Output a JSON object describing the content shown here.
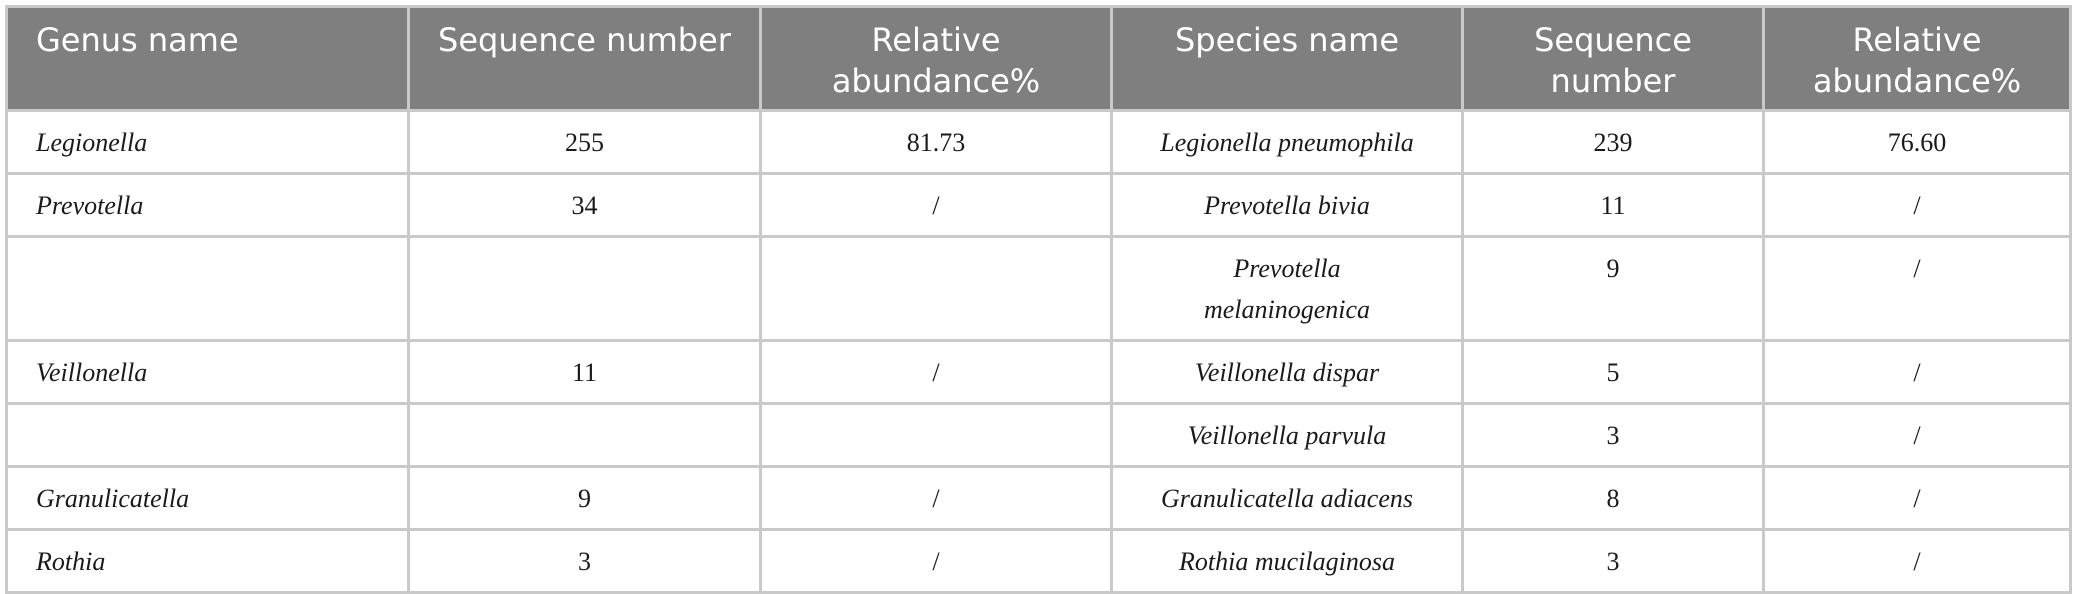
{
  "table": {
    "headers": [
      "Genus name",
      "Sequence number",
      "Relative abundance%",
      "Species name",
      "Sequence number",
      "Relative abundance%"
    ],
    "rows": [
      [
        "Legionella",
        "255",
        "81.73",
        "Legionella pneumophila",
        "239",
        "76.60"
      ],
      [
        "Prevotella",
        "34",
        "/",
        "Prevotella bivia",
        "11",
        "/"
      ],
      [
        "",
        "",
        "",
        "Prevotella melaninogenica",
        "9",
        "/"
      ],
      [
        "Veillonella",
        "11",
        "/",
        "Veillonella dispar",
        "5",
        "/"
      ],
      [
        "",
        "",
        "",
        "Veillonella parvula",
        "3",
        "/"
      ],
      [
        "Granulicatella",
        "9",
        "/",
        "Granulicatella adiacens",
        "8",
        "/"
      ],
      [
        "Rothia",
        "3",
        "/",
        "Rothia mucilaginosa",
        "3",
        "/"
      ]
    ]
  }
}
